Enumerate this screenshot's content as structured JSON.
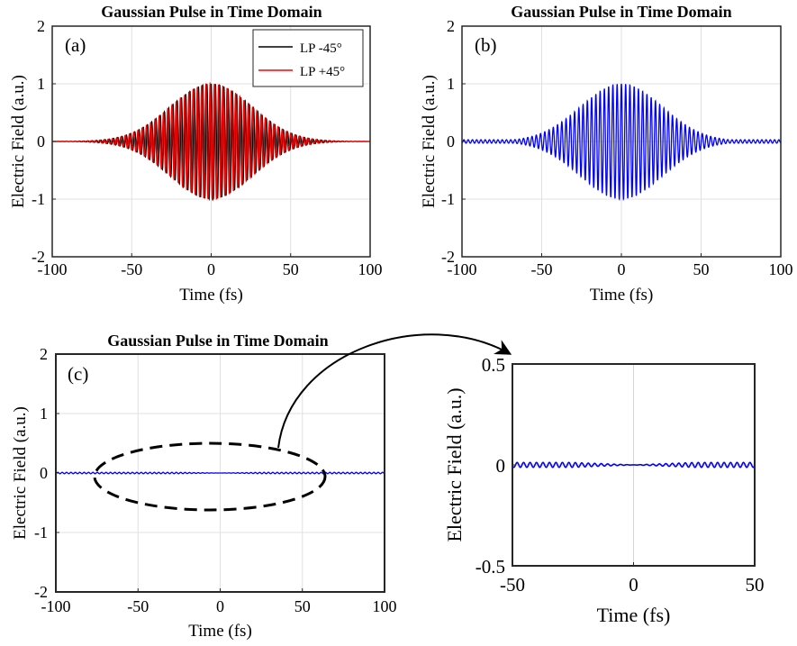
{
  "figure_title": "",
  "legend": {
    "items": [
      {
        "label": "LP -45°",
        "color": "#000000"
      },
      {
        "label": "LP +45°",
        "color": "#ff0000"
      }
    ]
  },
  "annotation": {
    "ellipse_style": "dashed",
    "arrow": "curved arrow from ellipse in (c) to zoomed panel"
  },
  "chart_data": [
    {
      "id": "a",
      "type": "line",
      "panel_label": "(a)",
      "title": "Gaussian Pulse in Time Domain",
      "xlabel": "Time (fs)",
      "ylabel": "Electric Field (a.u.)",
      "xlim": [
        -100,
        100
      ],
      "ylim": [
        -2,
        2
      ],
      "xticks": [
        "-100",
        "-50",
        "0",
        "50",
        "100"
      ],
      "yticks": [
        "2",
        "1",
        "0",
        "-1",
        "-2"
      ],
      "grid": true,
      "legend_position": "top-right",
      "series": [
        {
          "name": "LP -45°",
          "color": "#000000",
          "model": "gaussian_carrier",
          "amplitude": 1.0,
          "fwhm_fs": 60,
          "carrier_period_fs": 2.67,
          "phase": 0
        },
        {
          "name": "LP +45°",
          "color": "#ff0000",
          "model": "gaussian_carrier",
          "amplitude": 1.0,
          "fwhm_fs": 60,
          "carrier_period_fs": 2.67,
          "phase": 1.5708
        }
      ]
    },
    {
      "id": "b",
      "type": "line",
      "panel_label": "(b)",
      "title": "Gaussian Pulse in Time Domain",
      "xlabel": "Time (fs)",
      "ylabel": "Electric Field (a.u.)",
      "xlim": [
        -100,
        100
      ],
      "ylim": [
        -2,
        2
      ],
      "xticks": [
        "-100",
        "-50",
        "0",
        "50",
        "100"
      ],
      "yticks": [
        "2",
        "1",
        "0",
        "-1",
        "-2"
      ],
      "grid": true,
      "series": [
        {
          "color": "#0000ff",
          "model": "gaussian_carrier",
          "amplitude": 1.0,
          "fwhm_fs": 60,
          "carrier_period_fs": 2.67,
          "phase": 0,
          "floor": 0.03
        }
      ]
    },
    {
      "id": "c",
      "type": "line",
      "panel_label": "(c)",
      "title": "Gaussian Pulse in Time Domain",
      "xlabel": "Time (fs)",
      "ylabel": "Electric Field (a.u.)",
      "xlim": [
        -100,
        100
      ],
      "ylim": [
        -2,
        2
      ],
      "xticks": [
        "-100",
        "-50",
        "0",
        "50",
        "100"
      ],
      "yticks": [
        "2",
        "1",
        "0",
        "-1",
        "-2"
      ],
      "grid": true,
      "series": [
        {
          "color": "#0000ff",
          "model": "residual_ripple",
          "amplitude": 0.012,
          "carrier_period_fs": 2.67,
          "notch_fs": 0
        }
      ]
    },
    {
      "id": "zoom",
      "type": "line",
      "panel_label": "",
      "title": "",
      "xlabel": "Time (fs)",
      "ylabel": "Electric Field (a.u.)",
      "xlim": [
        -50,
        50
      ],
      "ylim": [
        -0.5,
        0.5
      ],
      "xticks": [
        "-50",
        "0",
        "50"
      ],
      "yticks": [
        "0.5",
        "0",
        "-0.5"
      ],
      "grid": true,
      "series": [
        {
          "color": "#0000ff",
          "model": "residual_ripple",
          "amplitude": 0.012,
          "carrier_period_fs": 2.67,
          "notch_fs": 0
        }
      ]
    }
  ]
}
